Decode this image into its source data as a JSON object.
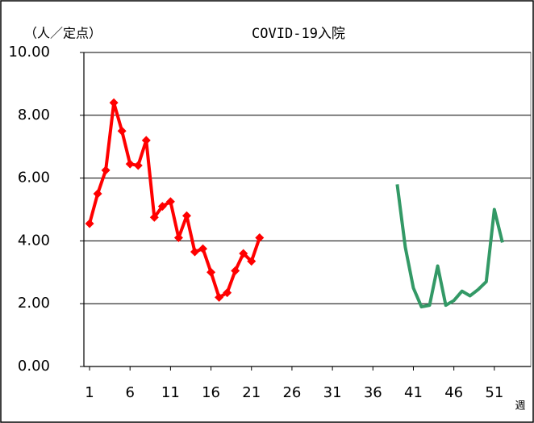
{
  "chart_data": {
    "type": "line",
    "title": "COVID-19入院",
    "y_label": "（人／定点）",
    "x_label": "週",
    "x": [
      1,
      2,
      3,
      4,
      5,
      6,
      7,
      8,
      9,
      10,
      11,
      12,
      13,
      14,
      15,
      16,
      17,
      18,
      19,
      20,
      21,
      22,
      23,
      24,
      25,
      26,
      27,
      28,
      29,
      30,
      31,
      32,
      33,
      34,
      35,
      36,
      37,
      38,
      39,
      40,
      41,
      42,
      43,
      44,
      45,
      46,
      47,
      48,
      49,
      50,
      51,
      52
    ],
    "series": [
      {
        "color": "#ff0000",
        "marker": "diamond",
        "values": [
          4.55,
          5.5,
          6.25,
          8.4,
          7.5,
          6.45,
          6.4,
          7.2,
          4.75,
          5.1,
          5.25,
          4.1,
          4.8,
          3.65,
          3.75,
          3.0,
          2.2,
          2.35,
          3.05,
          3.6,
          3.35,
          4.1,
          null,
          null,
          null,
          null,
          null,
          null,
          null,
          null,
          null,
          null,
          null,
          null,
          null,
          null,
          null,
          null,
          null,
          null,
          null,
          null,
          null,
          null,
          null,
          null,
          null,
          null,
          null,
          null,
          null,
          null
        ]
      },
      {
        "color": "#339966",
        "marker": "none",
        "values": [
          null,
          null,
          null,
          null,
          null,
          null,
          null,
          null,
          null,
          null,
          null,
          null,
          null,
          null,
          null,
          null,
          null,
          null,
          null,
          null,
          null,
          null,
          null,
          null,
          null,
          null,
          null,
          null,
          null,
          null,
          null,
          null,
          null,
          null,
          null,
          null,
          null,
          null,
          5.8,
          3.8,
          2.5,
          1.9,
          1.95,
          3.2,
          1.95,
          2.1,
          2.4,
          2.25,
          2.45,
          2.7,
          5.0,
          3.95
        ]
      }
    ],
    "xlim": [
      0.3,
      55.5
    ],
    "xticks": [
      1,
      6,
      11,
      16,
      21,
      26,
      31,
      36,
      41,
      46,
      51
    ],
    "ylim": [
      0,
      10
    ],
    "yticks": [
      {
        "value": 0,
        "label": "0.00"
      },
      {
        "value": 2,
        "label": "2.00"
      },
      {
        "value": 4,
        "label": "4.00"
      },
      {
        "value": 6,
        "label": "6.00"
      },
      {
        "value": 8,
        "label": "8.00"
      },
      {
        "value": 10,
        "label": "10.00"
      }
    ],
    "grid": true
  }
}
